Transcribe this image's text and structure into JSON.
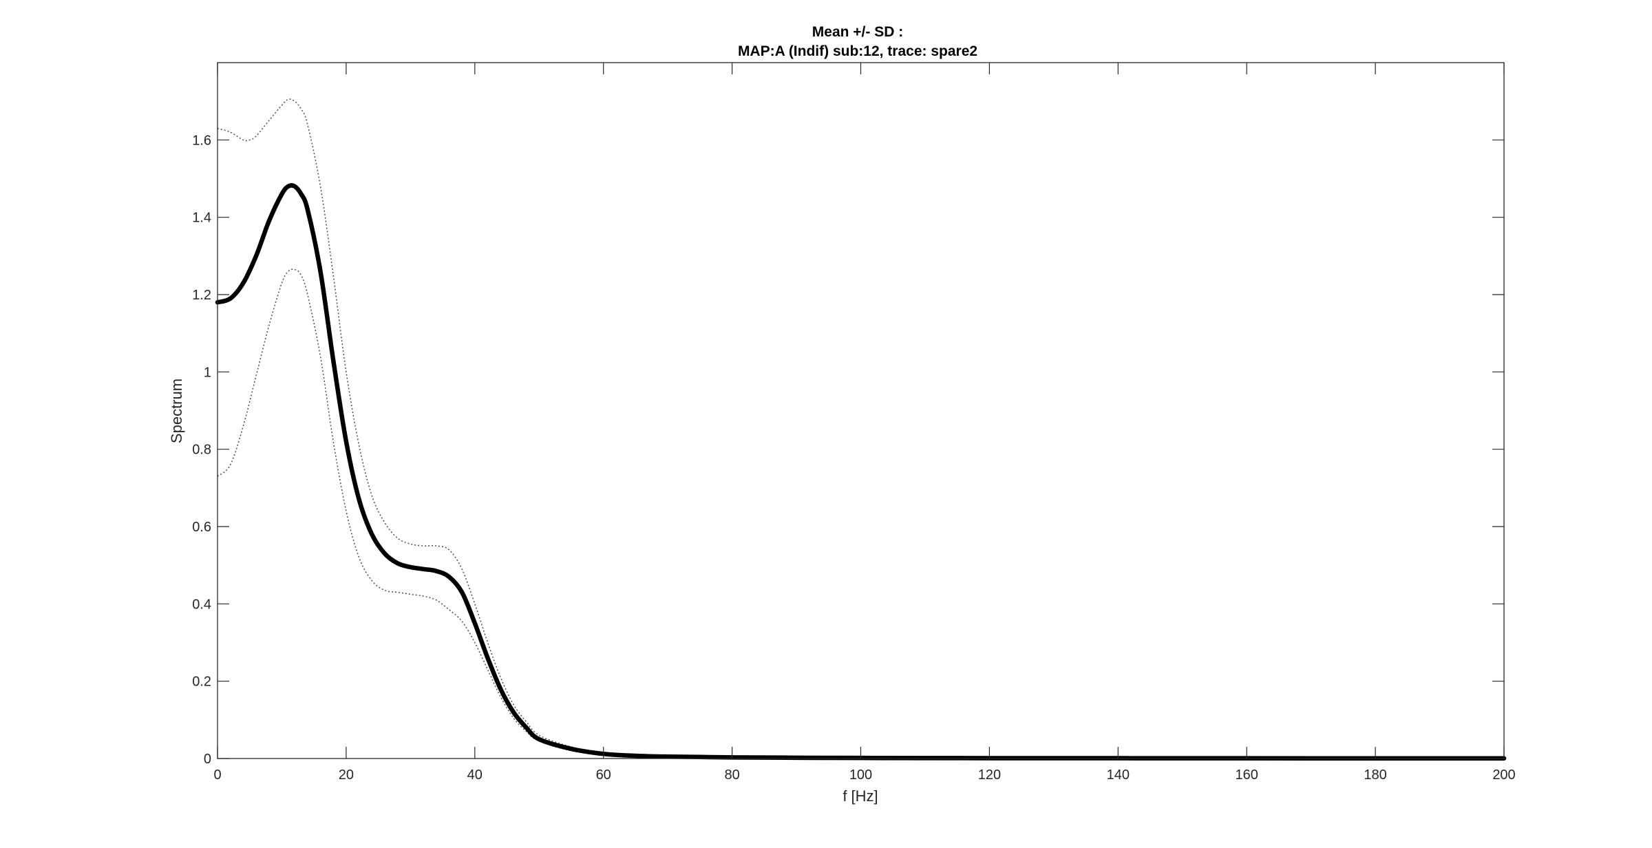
{
  "chart_data": {
    "type": "line",
    "title": "Mean +/- SD :",
    "subtitle": "MAP:A (Indif) sub:12, trace: spare2",
    "xlabel": "f [Hz]",
    "ylabel": "Spectrum",
    "xlim": [
      0,
      200
    ],
    "ylim": [
      0,
      1.8
    ],
    "xticks": [
      0,
      20,
      40,
      60,
      80,
      100,
      120,
      140,
      160,
      180,
      200
    ],
    "yticks": [
      0,
      0.2,
      0.4,
      0.6,
      0.8,
      1,
      1.2,
      1.4,
      1.6
    ],
    "grid": false,
    "box": true,
    "series": [
      {
        "style": "solid-thick",
        "color": "#000000",
        "x": [
          0,
          2,
          4,
          6,
          8,
          10,
          11,
          12,
          13,
          14,
          16,
          18,
          20,
          22,
          24,
          26,
          28,
          30,
          32,
          34,
          36,
          38,
          40,
          42,
          44,
          46,
          48,
          50,
          55,
          60,
          65,
          70,
          80,
          90,
          100,
          120,
          140,
          160,
          180,
          200
        ],
        "y": [
          1.18,
          1.19,
          1.23,
          1.3,
          1.39,
          1.46,
          1.48,
          1.48,
          1.46,
          1.42,
          1.26,
          1.03,
          0.82,
          0.67,
          0.58,
          0.53,
          0.505,
          0.495,
          0.49,
          0.485,
          0.47,
          0.43,
          0.35,
          0.26,
          0.18,
          0.12,
          0.08,
          0.05,
          0.025,
          0.012,
          0.007,
          0.005,
          0.003,
          0.002,
          0.0015,
          0.001,
          0.0008,
          0.0006,
          0.0005,
          0.0005
        ]
      },
      {
        "style": "dotted",
        "color": "#555555",
        "x": [
          0,
          2,
          4,
          5,
          6,
          8,
          10,
          11,
          12,
          13,
          14,
          16,
          18,
          20,
          22,
          24,
          26,
          28,
          30,
          32,
          34,
          36,
          38,
          40,
          42,
          44,
          46,
          48,
          50,
          55,
          60,
          65,
          70,
          80,
          90,
          100,
          120,
          140,
          160,
          180,
          200
        ],
        "y": [
          1.63,
          1.62,
          1.6,
          1.6,
          1.61,
          1.65,
          1.69,
          1.705,
          1.7,
          1.68,
          1.64,
          1.48,
          1.25,
          1.0,
          0.81,
          0.68,
          0.61,
          0.57,
          0.555,
          0.55,
          0.55,
          0.54,
          0.49,
          0.4,
          0.3,
          0.21,
          0.14,
          0.095,
          0.06,
          0.03,
          0.015,
          0.009,
          0.006,
          0.004,
          0.003,
          0.002,
          0.0015,
          0.001,
          0.001,
          0.001,
          0.001
        ]
      },
      {
        "style": "dotted",
        "color": "#555555",
        "x": [
          0,
          2,
          4,
          6,
          8,
          10,
          11,
          12,
          13,
          14,
          16,
          18,
          20,
          22,
          24,
          26,
          28,
          30,
          32,
          34,
          36,
          38,
          40,
          42,
          44,
          46,
          48,
          50,
          55,
          60,
          65,
          70,
          80,
          90,
          100,
          120,
          140,
          160,
          180,
          200
        ],
        "y": [
          0.73,
          0.76,
          0.86,
          0.99,
          1.12,
          1.23,
          1.26,
          1.265,
          1.25,
          1.2,
          1.04,
          0.82,
          0.64,
          0.52,
          0.46,
          0.435,
          0.43,
          0.425,
          0.42,
          0.41,
          0.385,
          0.355,
          0.3,
          0.23,
          0.16,
          0.105,
          0.07,
          0.045,
          0.02,
          0.01,
          0.005,
          0.003,
          0.002,
          0.001,
          0.0008,
          0.0005,
          0.0003,
          0.0002,
          0.0002,
          0.0002
        ]
      }
    ]
  }
}
